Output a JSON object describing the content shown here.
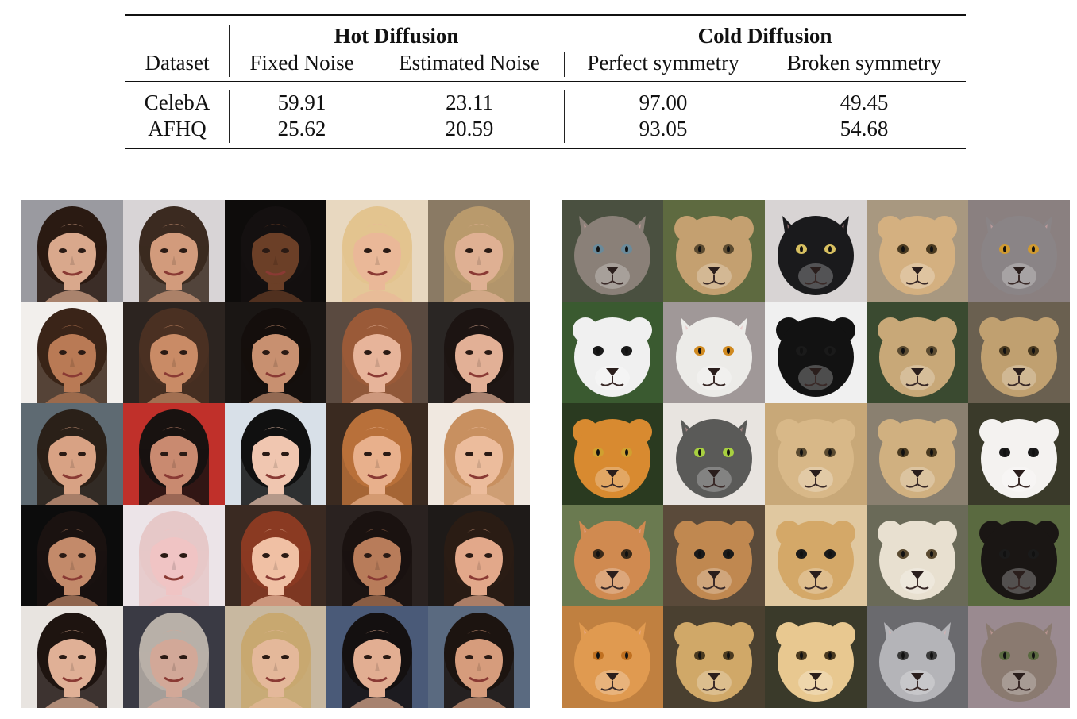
{
  "table": {
    "group_headers": {
      "hot": "Hot Diffusion",
      "cold": "Cold Diffusion"
    },
    "column_headers": [
      "Dataset",
      "Fixed Noise",
      "Estimated Noise",
      "Perfect symmetry",
      "Broken symmetry"
    ],
    "rows": [
      {
        "dataset": "CelebA",
        "values": [
          "59.91",
          "23.11",
          "97.00",
          "49.45"
        ]
      },
      {
        "dataset": "AFHQ",
        "values": [
          "25.62",
          "20.59",
          "93.05",
          "54.68"
        ]
      }
    ]
  },
  "face_grid": [
    {
      "bg": "#9a9aa0",
      "hair": "#2a1a12",
      "skin": "#d9a88c"
    },
    {
      "bg": "#d8d4d6",
      "hair": "#3b2a20",
      "skin": "#d29b7c"
    },
    {
      "bg": "#0e0c0b",
      "hair": "#141010",
      "skin": "#6b3f27"
    },
    {
      "bg": "#e8d8c0",
      "hair": "#e3c48f",
      "skin": "#eab898"
    },
    {
      "bg": "#8a7a64",
      "hair": "#b99a6c",
      "skin": "#dfb093"
    },
    {
      "bg": "#f2efec",
      "hair": "#3a2418",
      "skin": "#b97a55"
    },
    {
      "bg": "#2c2420",
      "hair": "#4a3022",
      "skin": "#c98b66"
    },
    {
      "bg": "#1a1614",
      "hair": "#140e0c",
      "skin": "#c89070"
    },
    {
      "bg": "#5a4a40",
      "hair": "#9a5a38",
      "skin": "#e7b49a"
    },
    {
      "bg": "#2a2624",
      "hair": "#1c1412",
      "skin": "#e2b096"
    },
    {
      "bg": "#5e6a72",
      "hair": "#2a2018",
      "skin": "#d8a284"
    },
    {
      "bg": "#c0302a",
      "hair": "#181210",
      "skin": "#c98a70"
    },
    {
      "bg": "#d8e0e8",
      "hair": "#101010",
      "skin": "#f0c6b0"
    },
    {
      "bg": "#3a2a20",
      "hair": "#b8703a",
      "skin": "#e8b08c"
    },
    {
      "bg": "#f0e8e0",
      "hair": "#c89060",
      "skin": "#ecbc9c"
    },
    {
      "bg": "#0c0c0c",
      "hair": "#1a1210",
      "skin": "#c38a6a"
    },
    {
      "bg": "#ece4e8",
      "hair": "#e6c8c8",
      "skin": "#f0c4c4"
    },
    {
      "bg": "#3a2a22",
      "hair": "#8a3a22",
      "skin": "#f0c0a4"
    },
    {
      "bg": "#2a2220",
      "hair": "#1a1210",
      "skin": "#b87c5a"
    },
    {
      "bg": "#1e1a18",
      "hair": "#2a1c14",
      "skin": "#e2a88a"
    },
    {
      "bg": "#e8e4e0",
      "hair": "#1e1410",
      "skin": "#e0b096"
    },
    {
      "bg": "#3a3a44",
      "hair": "#b8b0a8",
      "skin": "#d2a898"
    },
    {
      "bg": "#c8b8a0",
      "hair": "#c8a870",
      "skin": "#e4b89a"
    },
    {
      "bg": "#4a5a78",
      "hair": "#141010",
      "skin": "#e2ae92"
    },
    {
      "bg": "#5a6a80",
      "hair": "#1c1410",
      "skin": "#d69c7c"
    }
  ],
  "animal_grid": [
    {
      "bg": "#4a5040",
      "fur": "#8a8078",
      "ear": "pointed",
      "eye": "#6a8a9a"
    },
    {
      "bg": "#5e6a40",
      "fur": "#c4a070",
      "ear": "round",
      "eye": "#5a4a30"
    },
    {
      "bg": "#d8d4d4",
      "fur": "#1a1a1c",
      "ear": "pointed",
      "eye": "#d8c060"
    },
    {
      "bg": "#a89880",
      "fur": "#d4b080",
      "ear": "round",
      "eye": "#4a3a20"
    },
    {
      "bg": "#8a8080",
      "fur": "#8a8486",
      "ear": "pointed",
      "eye": "#d09a30"
    },
    {
      "bg": "#3a5a30",
      "fur": "#f0f0f0",
      "ear": "round",
      "eye": "#1a1a1a"
    },
    {
      "bg": "#a09898",
      "fur": "#ecebe8",
      "ear": "pointed",
      "eye": "#d08a20"
    },
    {
      "bg": "#f0f0f0",
      "fur": "#121212",
      "ear": "round",
      "eye": "#1a1a1a"
    },
    {
      "bg": "#3a4a30",
      "fur": "#c8a878",
      "ear": "round",
      "eye": "#5a4a30"
    },
    {
      "bg": "#6a6050",
      "fur": "#c0a070",
      "ear": "round",
      "eye": "#4a3a20"
    },
    {
      "bg": "#2a3a20",
      "fur": "#d88a30",
      "ear": "round",
      "eye": "#d0a030"
    },
    {
      "bg": "#e8e4e0",
      "fur": "#5a5a58",
      "ear": "pointed",
      "eye": "#a8d040"
    },
    {
      "bg": "#c8a878",
      "fur": "#d8b888",
      "ear": "round",
      "eye": "#5a4a30"
    },
    {
      "bg": "#8a8070",
      "fur": "#d0b080",
      "ear": "round",
      "eye": "#4a3a20"
    },
    {
      "bg": "#3a3a2a",
      "fur": "#f4f2f0",
      "ear": "round",
      "eye": "#1a1a1a"
    },
    {
      "bg": "#6a7a50",
      "fur": "#d08a50",
      "ear": "pointed",
      "eye": "#3a2a1a"
    },
    {
      "bg": "#5a4a3a",
      "fur": "#c08850",
      "ear": "round",
      "eye": "#1a1a1a"
    },
    {
      "bg": "#e0c8a0",
      "fur": "#d4a868",
      "ear": "round",
      "eye": "#1a1a1a"
    },
    {
      "bg": "#6a6a58",
      "fur": "#e8e0d0",
      "ear": "round",
      "eye": "#5a4a30"
    },
    {
      "bg": "#5a6a40",
      "fur": "#1a1614",
      "ear": "round",
      "eye": "#1a1a1a"
    },
    {
      "bg": "#c08040",
      "fur": "#e09a50",
      "ear": "pointed",
      "eye": "#c07020"
    },
    {
      "bg": "#4a4030",
      "fur": "#d0a868",
      "ear": "round",
      "eye": "#4a3a20"
    },
    {
      "bg": "#3a3a2a",
      "fur": "#e8c890",
      "ear": "round",
      "eye": "#4a3a20"
    },
    {
      "bg": "#6a6a6e",
      "fur": "#b4b4b8",
      "ear": "pointed",
      "eye": "#3a3a3a"
    },
    {
      "bg": "#9a8a90",
      "fur": "#8a7a70",
      "ear": "pointed",
      "eye": "#5a6a40"
    }
  ]
}
